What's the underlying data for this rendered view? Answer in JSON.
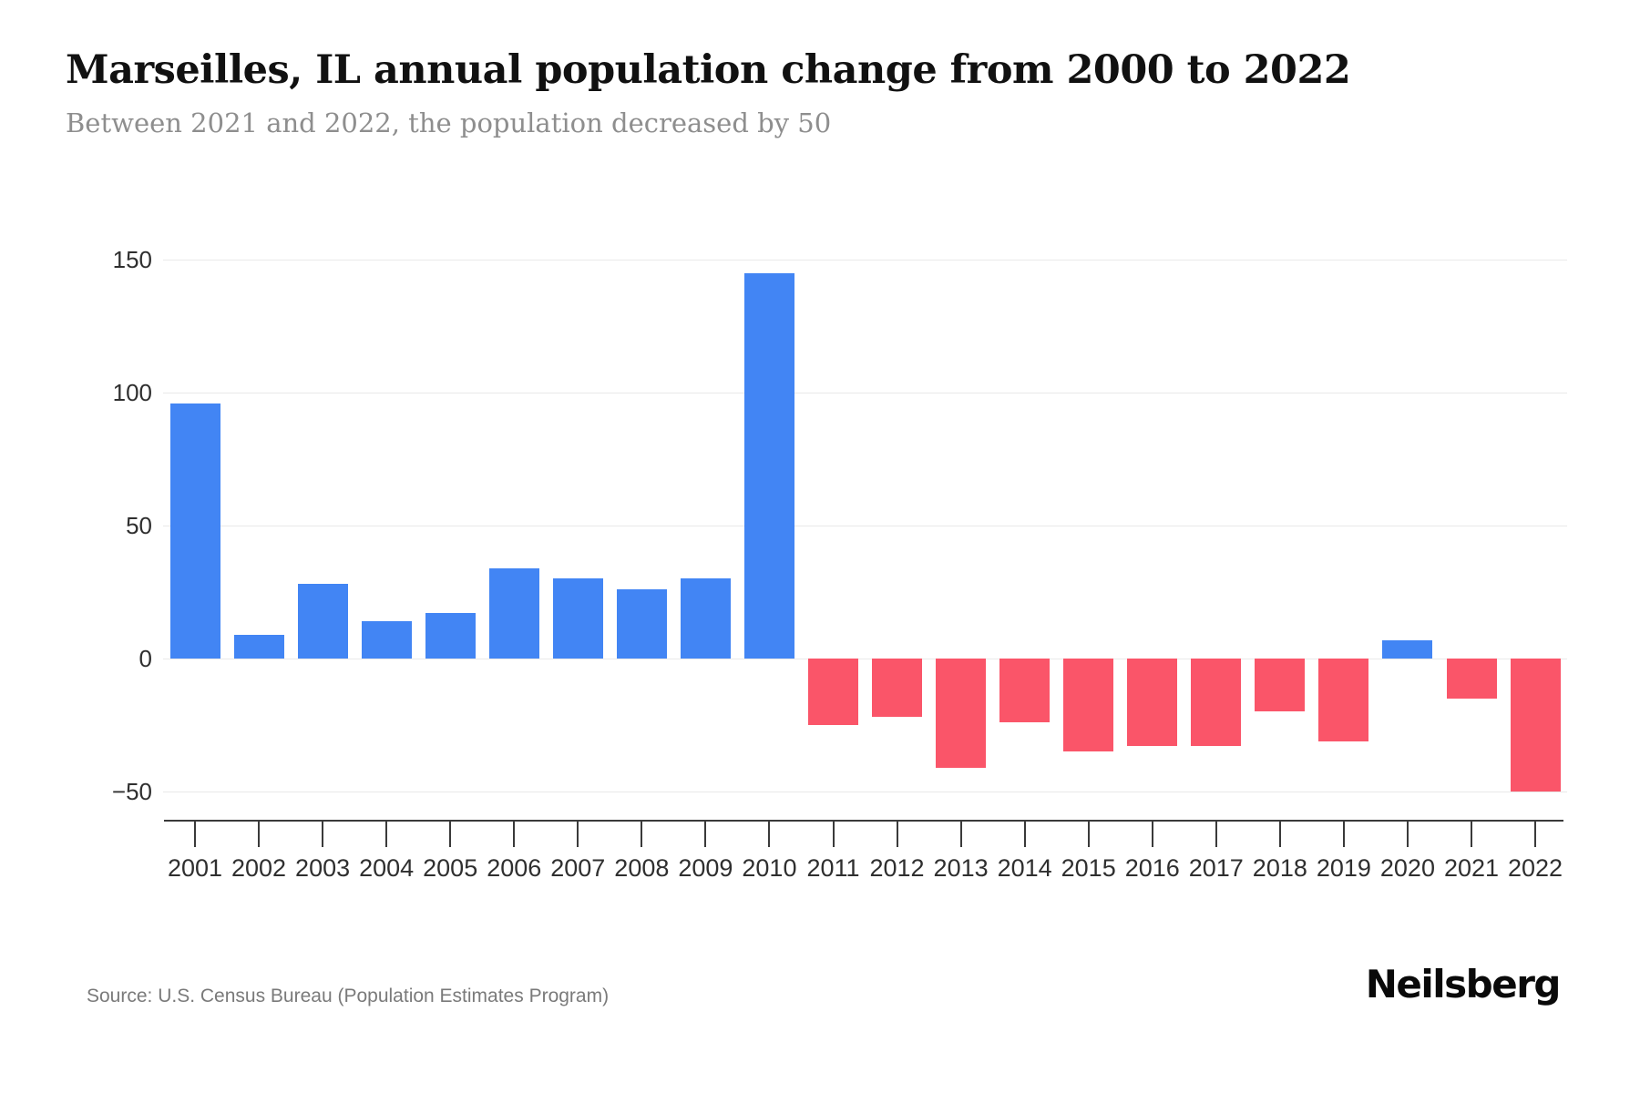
{
  "chart_data": {
    "type": "bar",
    "title": "Marseilles, IL annual population change from 2000 to 2022",
    "subtitle": "Between 2021 and 2022, the population decreased by 50",
    "categories": [
      "2001",
      "2002",
      "2003",
      "2004",
      "2005",
      "2006",
      "2007",
      "2008",
      "2009",
      "2010",
      "2011",
      "2012",
      "2013",
      "2014",
      "2015",
      "2016",
      "2017",
      "2018",
      "2019",
      "2020",
      "2021",
      "2022"
    ],
    "values": [
      96,
      9,
      28,
      14,
      17,
      34,
      30,
      26,
      30,
      145,
      -25,
      -22,
      -41,
      -24,
      -35,
      -33,
      -33,
      -20,
      -31,
      7,
      -15,
      -50
    ],
    "y_ticks": [
      150,
      100,
      50,
      0,
      -50
    ],
    "ylim": [
      -62,
      152
    ],
    "xlabel": "",
    "ylabel": "",
    "grid": true,
    "legend": false,
    "colors": {
      "positive": "#4285F4",
      "negative": "#FA5569"
    }
  },
  "source": {
    "text": "Source: U.S. Census Bureau (Population Estimates Program)"
  },
  "branding": {
    "logo_text": "Neilsberg"
  }
}
